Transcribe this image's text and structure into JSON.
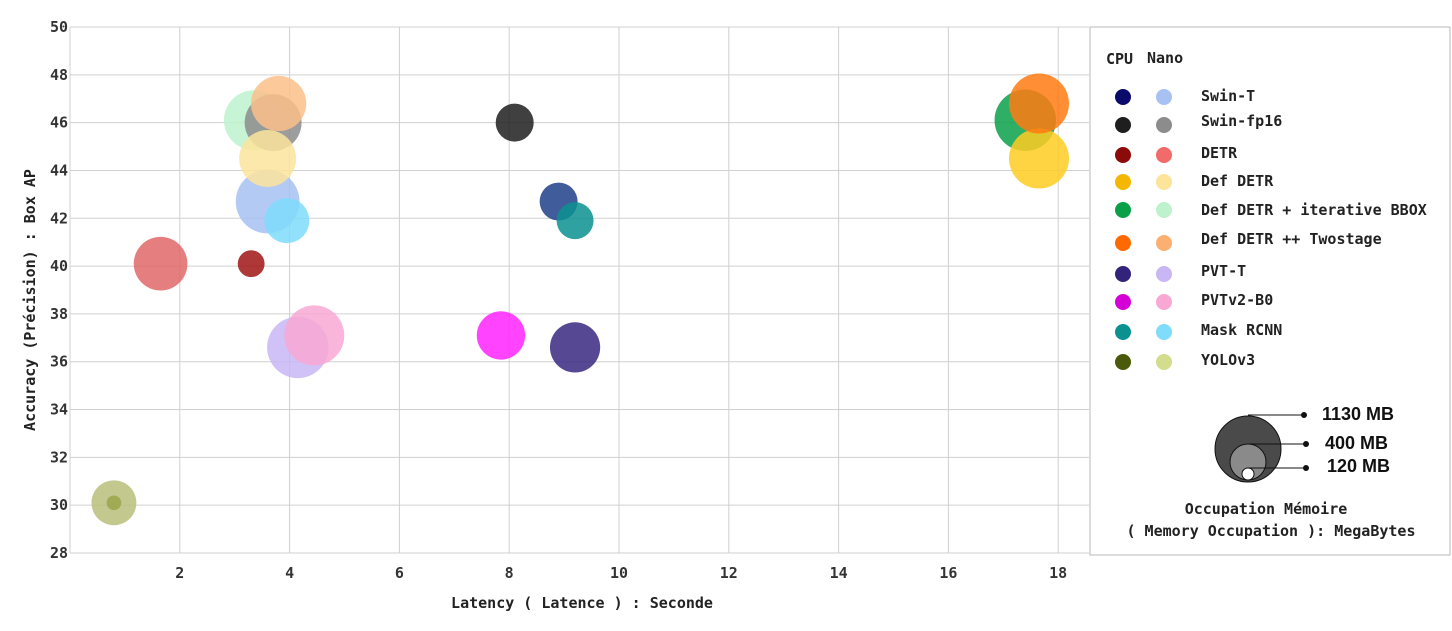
{
  "chart_data": {
    "type": "scatter",
    "xlabel": "Latency ( Latence ) :  Seconde",
    "ylabel": "Accuracy (Précision) : Box AP",
    "xlim": [
      0,
      18.6
    ],
    "ylim": [
      28,
      50
    ],
    "x_ticks": [
      2,
      4,
      6,
      8,
      10,
      12,
      14,
      16,
      18
    ],
    "y_ticks": [
      28,
      30,
      32,
      34,
      36,
      38,
      40,
      42,
      44,
      46,
      48,
      50
    ],
    "grid": true,
    "bubble_size_unit": "MB",
    "legend": {
      "placement": "right",
      "column_headers": [
        "CPU",
        "Nano"
      ],
      "entries": [
        {
          "name": "Swin-T",
          "cpu_color": "#0b0b6b",
          "nano_color": "#a6c1f2"
        },
        {
          "name": "Swin-fp16",
          "cpu_color": "#1e1e1e",
          "nano_color": "#8c8c8c"
        },
        {
          "name": "DETR",
          "cpu_color": "#8b0a0a",
          "nano_color": "#f26a6a"
        },
        {
          "name": "Def DETR",
          "cpu_color": "#f5b800",
          "nano_color": "#fce49b"
        },
        {
          "name": "Def DETR + iterative BBOX",
          "cpu_color": "#0aa04a",
          "nano_color": "#bdf2cc"
        },
        {
          "name": "Def DETR ++ Twostage",
          "cpu_color": "#ff6a00",
          "nano_color": "#fbb072"
        },
        {
          "name": "PVT-T",
          "cpu_color": "#33237a",
          "nano_color": "#c8b6f5"
        },
        {
          "name": "PVTv2-B0",
          "cpu_color": "#d500d5",
          "nano_color": "#f9a8d4"
        },
        {
          "name": "Mask RCNN",
          "cpu_color": "#0c9191",
          "nano_color": "#7fdcfb"
        },
        {
          "name": "YOLOv3",
          "cpu_color": "#4b5a0a",
          "nano_color": "#d4dc8e"
        }
      ]
    },
    "size_legend": {
      "title_line1": "Occupation Mémoire",
      "title_line2": "( Memory Occupation ): MegaBytes",
      "entries": [
        {
          "label": "1130 MB",
          "value": 1130,
          "color": "#4a4a4a"
        },
        {
          "label": "400 MB",
          "value": 400,
          "color": "#8a8a8a"
        },
        {
          "label": "120 MB",
          "value": 120,
          "color": "#ffffff"
        }
      ]
    },
    "series": [
      {
        "model": "Swin-T",
        "device": "CPU",
        "color": "#1f3f8a",
        "x": 8.9,
        "y": 42.7,
        "memory_mb": 400
      },
      {
        "model": "Swin-T",
        "device": "Nano",
        "color": "#a6c1f2",
        "x": 3.6,
        "y": 42.7,
        "memory_mb": 1130
      },
      {
        "model": "Swin-fp16",
        "device": "CPU",
        "color": "#1e1e1e",
        "x": 8.1,
        "y": 46.0,
        "memory_mb": 400
      },
      {
        "model": "Swin-fp16",
        "device": "Nano",
        "color": "#8c8c8c",
        "x": 3.7,
        "y": 46.0,
        "memory_mb": 900
      },
      {
        "model": "DETR",
        "device": "CPU",
        "color": "#a01414",
        "x": 3.3,
        "y": 40.1,
        "memory_mb": 200
      },
      {
        "model": "DETR",
        "device": "Nano",
        "color": "#e06868",
        "x": 1.65,
        "y": 40.1,
        "memory_mb": 800
      },
      {
        "model": "Def DETR",
        "device": "CPU",
        "color": "#ffcc22",
        "x": 17.65,
        "y": 44.5,
        "memory_mb": 1000
      },
      {
        "model": "Def DETR",
        "device": "Nano",
        "color": "#fce49b",
        "x": 3.6,
        "y": 44.5,
        "memory_mb": 900
      },
      {
        "model": "Def DETR + iterative BBOX",
        "device": "CPU",
        "color": "#0aa04a",
        "x": 17.4,
        "y": 46.1,
        "memory_mb": 1050
      },
      {
        "model": "Def DETR + iterative BBOX",
        "device": "Nano",
        "color": "#bdf2cc",
        "x": 3.35,
        "y": 46.1,
        "memory_mb": 1000
      },
      {
        "model": "Def DETR ++ Twostage",
        "device": "CPU",
        "color": "#ff7a10",
        "x": 17.65,
        "y": 46.8,
        "memory_mb": 1000
      },
      {
        "model": "Def DETR ++ Twostage",
        "device": "Nano",
        "color": "#fbbf8a",
        "x": 3.8,
        "y": 46.8,
        "memory_mb": 850
      },
      {
        "model": "PVT-T",
        "device": "CPU",
        "color": "#3a2880",
        "x": 9.2,
        "y": 36.6,
        "memory_mb": 700
      },
      {
        "model": "PVT-T",
        "device": "Nano",
        "color": "#c8b6f5",
        "x": 4.15,
        "y": 36.6,
        "memory_mb": 1050
      },
      {
        "model": "PVTv2-B0",
        "device": "CPU",
        "color": "#ff22ff",
        "x": 7.85,
        "y": 37.1,
        "memory_mb": 650
      },
      {
        "model": "PVTv2-B0",
        "device": "Nano",
        "color": "#f9a8d4",
        "x": 4.45,
        "y": 37.1,
        "memory_mb": 1000
      },
      {
        "model": "Mask RCNN",
        "device": "CPU",
        "color": "#0c9191",
        "x": 9.2,
        "y": 41.9,
        "memory_mb": 380
      },
      {
        "model": "Mask RCNN",
        "device": "Nano",
        "color": "#7fdcfb",
        "x": 3.95,
        "y": 41.9,
        "memory_mb": 560
      },
      {
        "model": "YOLOv3",
        "device": "CPU",
        "color": "#9aa64a",
        "x": 0.8,
        "y": 30.1,
        "memory_mb": 60
      },
      {
        "model": "YOLOv3",
        "device": "Nano",
        "color": "#b8c07a",
        "x": 0.8,
        "y": 30.1,
        "memory_mb": 560
      }
    ]
  }
}
